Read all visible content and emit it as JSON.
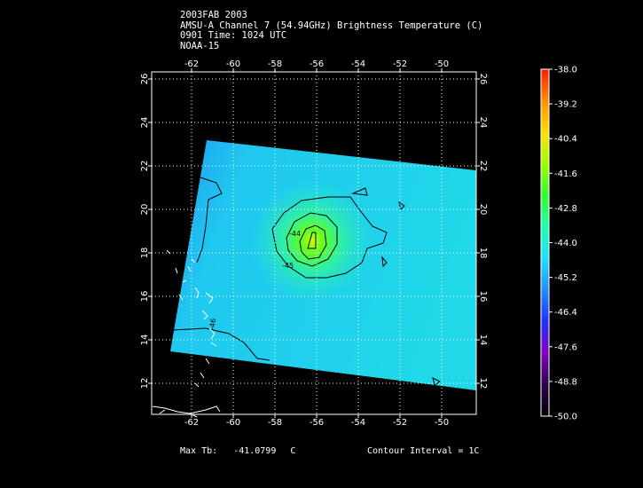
{
  "header": {
    "line1": "2003FAB 2003",
    "line2": "AMSU-A Channel 7 (54.94GHz) Brightness Temperature (C)",
    "line3": "0901 Time: 1024 UTC",
    "line4": "NOAA-15"
  },
  "map": {
    "lon_ticks": [
      "-62",
      "-60",
      "-58",
      "-56",
      "-54",
      "-52",
      "-50"
    ],
    "lat_ticks": [
      "12",
      "14",
      "16",
      "18",
      "20",
      "22",
      "24",
      "26"
    ],
    "contour_labels": [
      "-44",
      "-45",
      "-46"
    ],
    "grid": true
  },
  "colorbar": {
    "labels": [
      "-38.0",
      "-39.2",
      "-40.4",
      "-41.6",
      "-42.8",
      "-44.0",
      "-45.2",
      "-46.4",
      "-47.6",
      "-48.8",
      "-50.0"
    ],
    "colors": [
      "#ff1a00",
      "#ff9000",
      "#ffe000",
      "#a0ff00",
      "#30ff30",
      "#20ffb0",
      "#20e0ff",
      "#2090ff",
      "#2030ff",
      "#8000c0",
      "#300050",
      "#000000"
    ]
  },
  "footer": {
    "max_label": "Max Tb:",
    "max_value": "-41.0799",
    "max_unit": "C",
    "contour_interval": "Contour Interval = 1C"
  }
}
